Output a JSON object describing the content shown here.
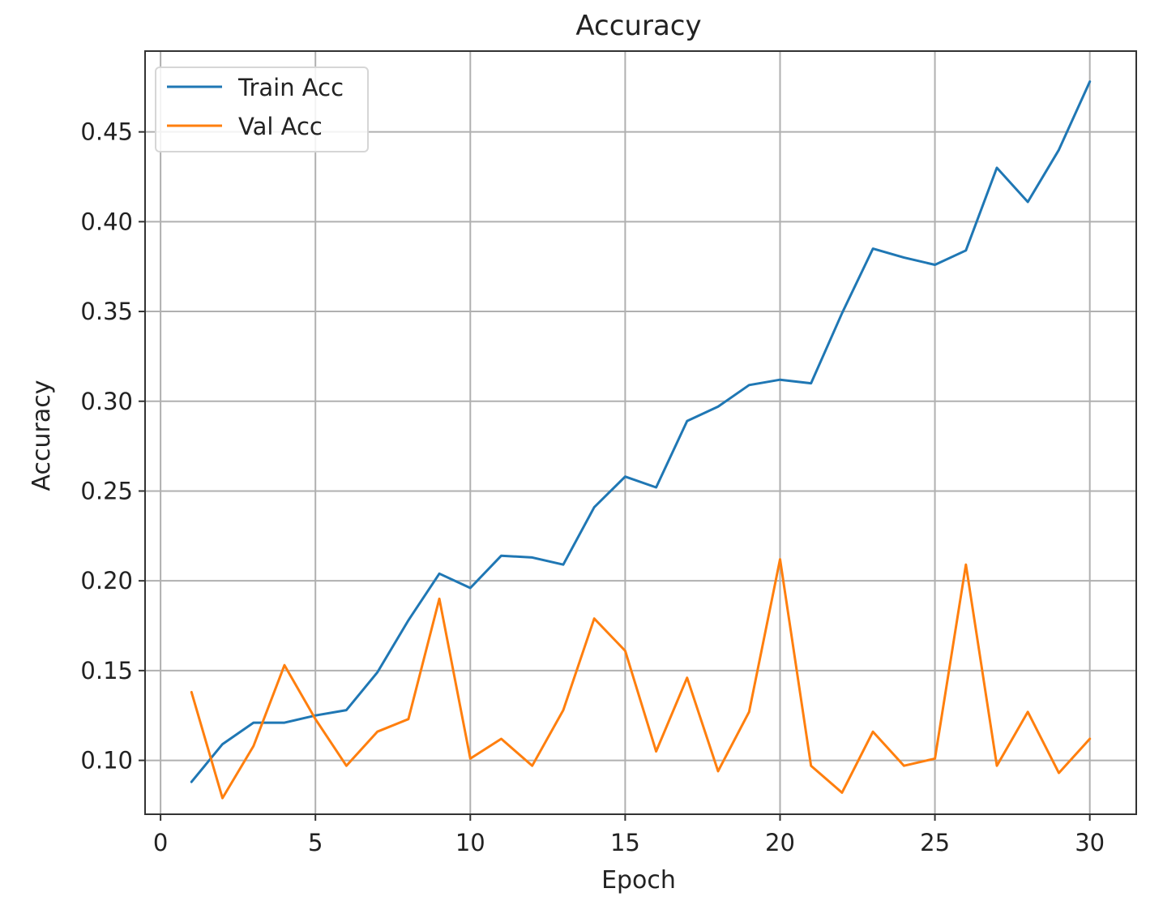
{
  "chart_data": {
    "type": "line",
    "title": "Accuracy",
    "xlabel": "Epoch",
    "ylabel": "Accuracy",
    "xlim": [
      -0.5,
      31.5
    ],
    "ylim": [
      0.07,
      0.495
    ],
    "xticks": [
      0,
      5,
      10,
      15,
      20,
      25,
      30
    ],
    "xtick_labels": [
      "0",
      "5",
      "10",
      "15",
      "20",
      "25",
      "30"
    ],
    "yticks": [
      0.1,
      0.15,
      0.2,
      0.25,
      0.3,
      0.35,
      0.4,
      0.45
    ],
    "ytick_labels": [
      "0.10",
      "0.15",
      "0.20",
      "0.25",
      "0.30",
      "0.35",
      "0.40",
      "0.45"
    ],
    "grid": true,
    "legend_position": "top-left",
    "x": [
      1,
      2,
      3,
      4,
      5,
      6,
      7,
      8,
      9,
      10,
      11,
      12,
      13,
      14,
      15,
      16,
      17,
      18,
      19,
      20,
      21,
      22,
      23,
      24,
      25,
      26,
      27,
      28,
      29,
      30
    ],
    "series": [
      {
        "name": "Train Acc",
        "color": "#1f77b4",
        "values": [
          0.088,
          0.109,
          0.121,
          0.121,
          0.125,
          0.128,
          0.149,
          0.178,
          0.204,
          0.196,
          0.214,
          0.213,
          0.209,
          0.241,
          0.258,
          0.252,
          0.289,
          0.297,
          0.309,
          0.312,
          0.31,
          0.349,
          0.385,
          0.38,
          0.376,
          0.384,
          0.43,
          0.411,
          0.44,
          0.478
        ]
      },
      {
        "name": "Val Acc",
        "color": "#ff7f0e",
        "values": [
          0.138,
          0.079,
          0.108,
          0.153,
          0.123,
          0.097,
          0.116,
          0.123,
          0.19,
          0.101,
          0.112,
          0.097,
          0.128,
          0.179,
          0.161,
          0.105,
          0.146,
          0.094,
          0.127,
          0.212,
          0.097,
          0.082,
          0.116,
          0.097,
          0.101,
          0.209,
          0.097,
          0.127,
          0.093,
          0.112
        ]
      }
    ]
  }
}
